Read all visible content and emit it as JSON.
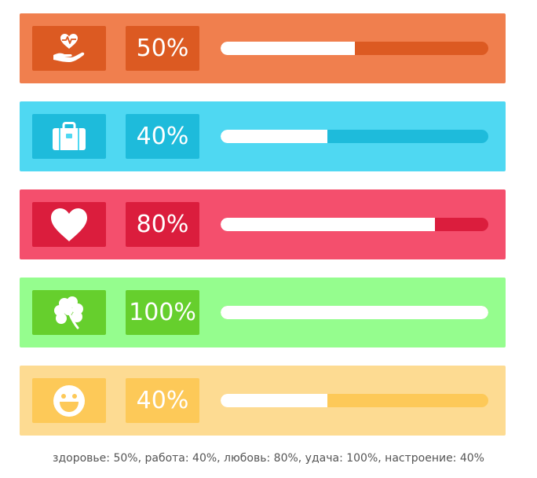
{
  "bars": [
    {
      "key": "health",
      "icon": "heart-hand-icon",
      "percent_label": "50%",
      "value": 0.5,
      "bg": "#f07f4e",
      "dark": "#dc5a22"
    },
    {
      "key": "work",
      "icon": "briefcase-icon",
      "percent_label": "40%",
      "value": 0.4,
      "bg": "#4fd8f2",
      "dark": "#1ebbdb"
    },
    {
      "key": "love",
      "icon": "heart-icon",
      "percent_label": "80%",
      "value": 0.8,
      "bg": "#f44f6d",
      "dark": "#db1d3d"
    },
    {
      "key": "luck",
      "icon": "clover-icon",
      "percent_label": "100%",
      "value": 1.0,
      "bg": "#95fd8e",
      "dark": "#66cf2d"
    },
    {
      "key": "mood",
      "icon": "smiley-icon",
      "percent_label": "40%",
      "value": 0.4,
      "bg": "#fddb92",
      "dark": "#fdc958"
    }
  ],
  "caption": "здоровье: 50%, работа: 40%, любовь: 80%, удача: 100%, настроение: 40%"
}
